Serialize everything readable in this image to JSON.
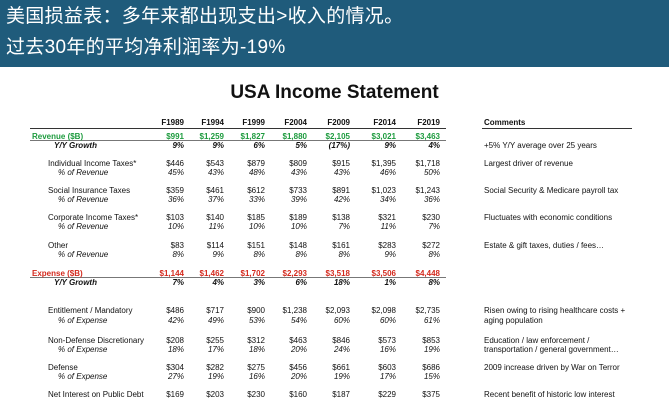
{
  "banner": {
    "line1": "美国损益表：多年来都出现支出>收入的情况。",
    "line2": "过去30年的平均净利润率为-19%"
  },
  "statement": {
    "title": "USA Income Statement",
    "years": [
      "F1989",
      "F1994",
      "F1999",
      "F2004",
      "F2009",
      "F2014",
      "F2019"
    ],
    "comments_header": "Comments",
    "rows": [
      {
        "kind": "head-green",
        "label": "Revenue ($B)",
        "values": [
          "$991",
          "$1,259",
          "$1,827",
          "$1,880",
          "$2,105",
          "$3,021",
          "$3,463"
        ],
        "comment": ""
      },
      {
        "kind": "sub-bold",
        "label": "Y/Y Growth",
        "values": [
          "9%",
          "9%",
          "6%",
          "5%",
          "(17%)",
          "9%",
          "4%"
        ],
        "comment": "+5% Y/Y average over 25 years"
      },
      {
        "kind": "item",
        "label": "Individual Income Taxes*",
        "values": [
          "$446",
          "$543",
          "$879",
          "$809",
          "$915",
          "$1,395",
          "$1,718"
        ],
        "comment": "Largest driver of revenue"
      },
      {
        "kind": "sub",
        "label": "% of Revenue",
        "values": [
          "45%",
          "43%",
          "48%",
          "43%",
          "43%",
          "46%",
          "50%"
        ],
        "comment": ""
      },
      {
        "kind": "item",
        "label": "Social Insurance Taxes",
        "values": [
          "$359",
          "$461",
          "$612",
          "$733",
          "$891",
          "$1,023",
          "$1,243"
        ],
        "comment": "Social Security & Medicare payroll tax"
      },
      {
        "kind": "sub",
        "label": "% of Revenue",
        "values": [
          "36%",
          "37%",
          "33%",
          "39%",
          "42%",
          "34%",
          "36%"
        ],
        "comment": ""
      },
      {
        "kind": "item",
        "label": "Corporate Income Taxes*",
        "values": [
          "$103",
          "$140",
          "$185",
          "$189",
          "$138",
          "$321",
          "$230"
        ],
        "comment": "Fluctuates with economic conditions"
      },
      {
        "kind": "sub",
        "label": "% of Revenue",
        "values": [
          "10%",
          "11%",
          "10%",
          "10%",
          "7%",
          "11%",
          "7%"
        ],
        "comment": ""
      },
      {
        "kind": "item",
        "label": "Other",
        "values": [
          "$83",
          "$114",
          "$151",
          "$148",
          "$161",
          "$283",
          "$272"
        ],
        "comment": "Estate & gift taxes, duties / fees…"
      },
      {
        "kind": "sub",
        "label": "% of Revenue",
        "values": [
          "8%",
          "9%",
          "8%",
          "8%",
          "8%",
          "9%",
          "8%"
        ],
        "comment": ""
      },
      {
        "kind": "head-red",
        "label": "Expense ($B)",
        "values": [
          "$1,144",
          "$1,462",
          "$1,702",
          "$2,293",
          "$3,518",
          "$3,506",
          "$4,448"
        ],
        "comment": ""
      },
      {
        "kind": "sub-bold",
        "label": "Y/Y Growth",
        "values": [
          "7%",
          "4%",
          "3%",
          "6%",
          "18%",
          "1%",
          "8%"
        ],
        "comment": ""
      },
      {
        "kind": "item",
        "label": "Entitlement / Mandatory",
        "values": [
          "$486",
          "$717",
          "$900",
          "$1,238",
          "$2,093",
          "$2,098",
          "$2,735"
        ],
        "comment": "Risen owing to rising healthcare costs +"
      },
      {
        "kind": "sub",
        "label": "% of Expense",
        "values": [
          "42%",
          "49%",
          "53%",
          "54%",
          "60%",
          "60%",
          "61%"
        ],
        "comment": "aging population"
      },
      {
        "kind": "item",
        "label": "Non-Defense Discretionary",
        "values": [
          "$208",
          "$255",
          "$312",
          "$463",
          "$846",
          "$573",
          "$853"
        ],
        "comment": "Education / law enforcement /"
      },
      {
        "kind": "sub",
        "label": "% of Expense",
        "values": [
          "18%",
          "17%",
          "18%",
          "20%",
          "24%",
          "16%",
          "19%"
        ],
        "comment": "transportation / general government…"
      },
      {
        "kind": "item",
        "label": "Defense",
        "values": [
          "$304",
          "$282",
          "$275",
          "$456",
          "$661",
          "$603",
          "$686"
        ],
        "comment": "2009 increase driven by War on Terror"
      },
      {
        "kind": "sub",
        "label": "% of Expense",
        "values": [
          "27%",
          "19%",
          "16%",
          "20%",
          "19%",
          "17%",
          "15%"
        ],
        "comment": ""
      },
      {
        "kind": "item",
        "label": "Net Interest on Public Debt",
        "values": [
          "$169",
          "$203",
          "$230",
          "$160",
          "$187",
          "$229",
          "$375"
        ],
        "comment": "Recent benefit of historic low interest"
      }
    ]
  }
}
